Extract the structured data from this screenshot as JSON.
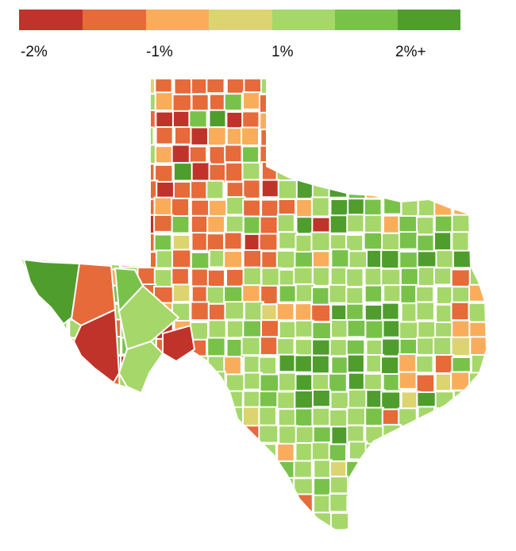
{
  "legend": {
    "colors": [
      "#c0332a",
      "#e66a3a",
      "#f9ad5b",
      "#dcd470",
      "#a6d76a",
      "#79c24a",
      "#4f9d2d"
    ],
    "labels": [
      {
        "text": "-2%",
        "after_bin": 0
      },
      {
        "text": "-1%",
        "after_bin": 2
      },
      {
        "text": "1%",
        "after_bin": 4
      },
      {
        "text": "2%+",
        "after_bin": 6
      }
    ]
  },
  "map": {
    "region": "Texas",
    "unit": "county",
    "border_color": "#ffffff",
    "dominant_colors": {
      "panhandle": "#e66a3a",
      "central": "#79c24a",
      "south": "#a6d76a",
      "far_west": "#c0332a"
    }
  }
}
